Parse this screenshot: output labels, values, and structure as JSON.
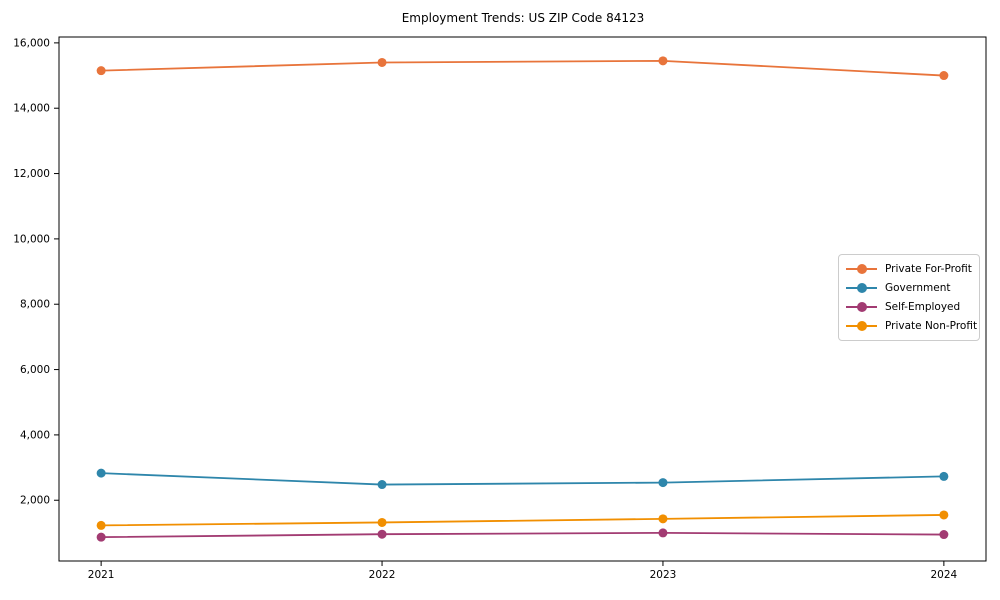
{
  "chart_data": {
    "type": "line",
    "title": "Employment Trends: US ZIP Code 84123",
    "xlabel": "",
    "ylabel": "",
    "categories": [
      "2021",
      "2022",
      "2023",
      "2024"
    ],
    "series": [
      {
        "name": "Private For-Profit",
        "color": "#E8743B",
        "values": [
          15150,
          15400,
          15450,
          15000
        ]
      },
      {
        "name": "Government",
        "color": "#2E86AB",
        "values": [
          2830,
          2480,
          2540,
          2730
        ]
      },
      {
        "name": "Self-Employed",
        "color": "#A23B72",
        "values": [
          870,
          960,
          1000,
          950
        ]
      },
      {
        "name": "Private Non-Profit",
        "color": "#F18F01",
        "values": [
          1230,
          1320,
          1430,
          1550
        ]
      }
    ],
    "ylim": [
      140,
      16180
    ],
    "yticks": [
      2000,
      4000,
      6000,
      8000,
      10000,
      12000,
      14000,
      16000
    ],
    "grid": false,
    "legend_position": "center right",
    "frame_color": "#000000",
    "tick_label_color": "#000000"
  }
}
